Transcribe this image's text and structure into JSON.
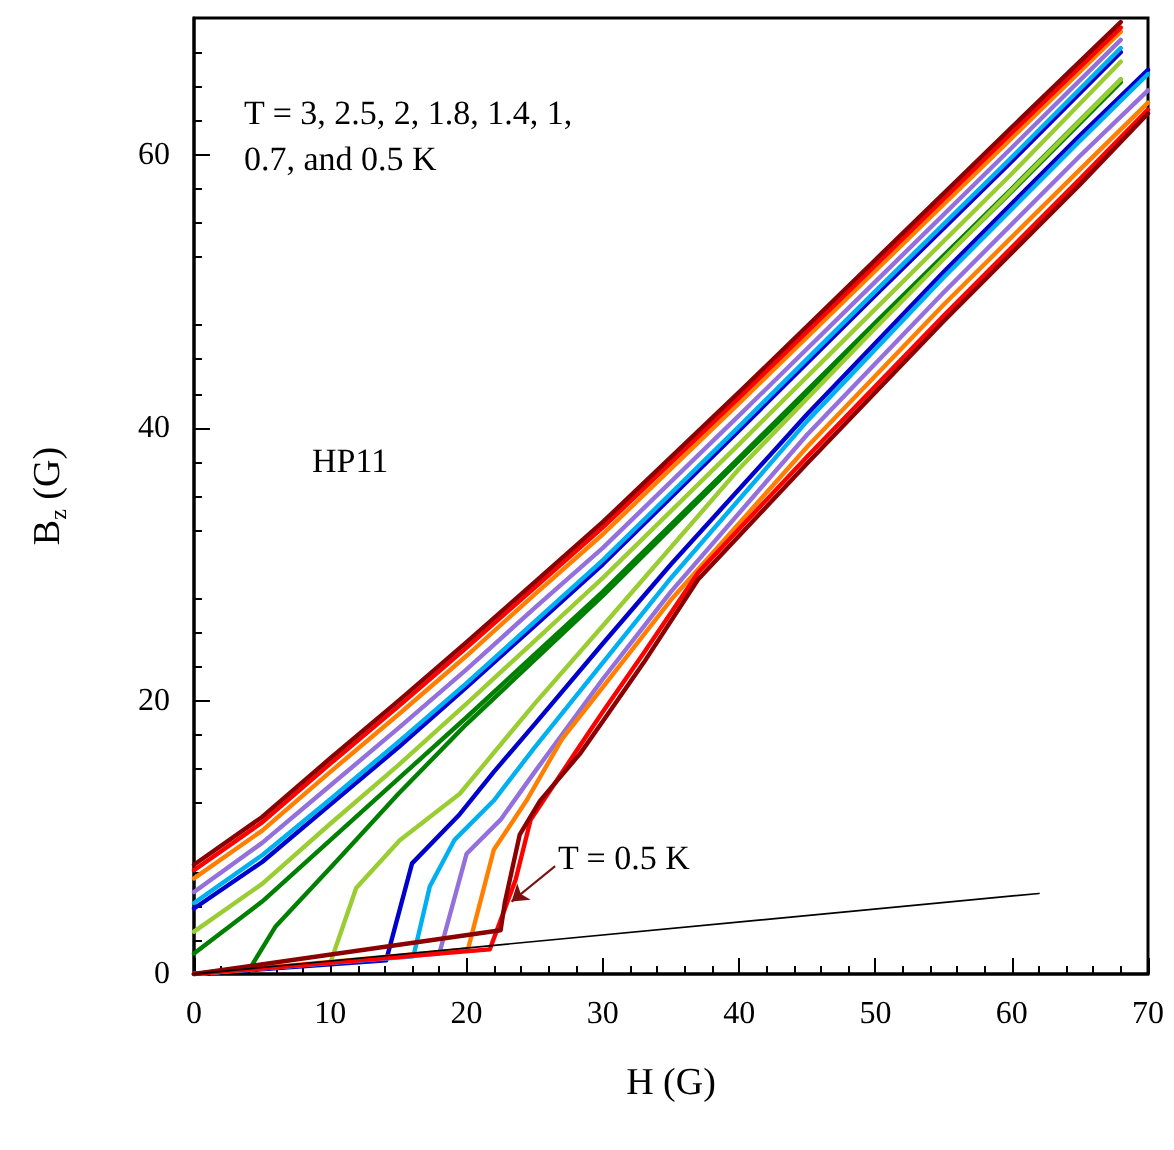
{
  "chart_data": {
    "type": "line",
    "xlabel": "H (G)",
    "ylabel": "B$_{z}$ (G)",
    "xlim": [
      0,
      70
    ],
    "xticks": [
      0,
      10,
      20,
      30,
      40,
      50,
      60,
      70
    ],
    "ylim": [
      0,
      70
    ],
    "yticks": [
      0,
      20,
      40,
      60
    ],
    "grid": false,
    "marker": "none",
    "line_style": "solid",
    "annotations": [
      "T = 3, 2.5, 2, 1.8, 1.4, 1, 0.7, and 0.5 K",
      "HP11",
      {
        "text": "T = 0.5 K",
        "x": 23.3,
        "y": 5.3
      }
    ],
    "series": [
      {
        "color": "#008000",
        "x": [
          0,
          5,
          10,
          15,
          20,
          25,
          30,
          40,
          50,
          60,
          68
        ],
        "values": [
          1.5,
          5.3,
          9.8,
          14.3,
          18.8,
          23.4,
          28,
          37.8,
          47.7,
          57.5,
          65.5
        ]
      },
      {
        "color": "#9acd32",
        "x": [
          0,
          5,
          10,
          15,
          20,
          25,
          30,
          40,
          50,
          60,
          68
        ],
        "values": [
          3.1,
          6.6,
          11,
          15.3,
          19.8,
          24.4,
          29,
          38.8,
          48.7,
          58.6,
          66.8
        ]
      },
      {
        "color": "#0000cd",
        "x": [
          0,
          5,
          10,
          15,
          20,
          25,
          30,
          40,
          50,
          60,
          68
        ],
        "values": [
          4.8,
          8.2,
          12.4,
          16.6,
          21,
          25.5,
          30,
          39.8,
          49.7,
          59.5,
          67.5
        ]
      },
      {
        "color": "#00b0f0",
        "x": [
          0,
          5,
          10,
          15,
          20,
          25,
          30,
          40,
          50,
          60,
          68
        ],
        "values": [
          5.2,
          8.7,
          12.8,
          17,
          21.3,
          25.8,
          30.3,
          40.1,
          50,
          59.8,
          67.8
        ]
      },
      {
        "color": "#9370db",
        "x": [
          0,
          5,
          10,
          15,
          20,
          25,
          30,
          40,
          50,
          60,
          68
        ],
        "values": [
          6,
          9.6,
          13.8,
          18,
          22.3,
          26.8,
          31.2,
          40.9,
          50.7,
          60.5,
          68.4
        ]
      },
      {
        "color": "#ff8000",
        "x": [
          0,
          5,
          10,
          15,
          20,
          25,
          30,
          40,
          50,
          60,
          68
        ],
        "values": [
          7,
          10.5,
          14.8,
          19,
          23.3,
          27.8,
          32.2,
          41.8,
          51.5,
          61.2,
          69
        ]
      },
      {
        "color": "#ff0000",
        "x": [
          0,
          5,
          10,
          15,
          20,
          25,
          30,
          40,
          50,
          60,
          68
        ],
        "values": [
          7.6,
          11.1,
          15.4,
          19.6,
          23.9,
          28.3,
          32.7,
          42.2,
          51.9,
          61.6,
          69.3
        ]
      },
      {
        "color": "#8b0000",
        "x": [
          0,
          5,
          10,
          15,
          20,
          25,
          30,
          40,
          50,
          60,
          68
        ],
        "values": [
          8,
          11.5,
          15.8,
          20,
          24.3,
          28.7,
          33.1,
          42.6,
          52.3,
          62,
          69.7
        ]
      },
      {
        "color": "#008000",
        "x": [
          0,
          4.1,
          6,
          10.3,
          15,
          20,
          30,
          40,
          50,
          60,
          68
        ],
        "values": [
          0,
          0.4,
          3.5,
          8.1,
          13.2,
          18.3,
          27.7,
          37.6,
          47.5,
          57.3,
          65.3
        ]
      },
      {
        "color": "#9acd32",
        "x": [
          0,
          10,
          11.9,
          15.1,
          19.5,
          25,
          30,
          40,
          50,
          60,
          68
        ],
        "values": [
          0,
          0.8,
          6.3,
          9.8,
          13.2,
          19.8,
          25.5,
          37,
          47.3,
          57.4,
          65.5
        ]
      },
      {
        "color": "#0000cd",
        "x": [
          0,
          14.1,
          16,
          19.5,
          22,
          25,
          30,
          35,
          45,
          55,
          65,
          70
        ],
        "values": [
          0,
          1,
          8.1,
          11.7,
          14.8,
          18.3,
          24.2,
          30,
          41,
          51.4,
          61.4,
          66.2
        ]
      },
      {
        "color": "#00b0f0",
        "x": [
          0,
          16.1,
          17.3,
          19.1,
          22,
          25,
          30,
          35,
          45,
          55,
          65,
          70
        ],
        "values": [
          0,
          1.3,
          6.4,
          9.8,
          12.7,
          16.6,
          22.8,
          29,
          40.5,
          51,
          61,
          65.9
        ]
      },
      {
        "color": "#9370db",
        "x": [
          0,
          18,
          20,
          22.5,
          25,
          30,
          35,
          45,
          55,
          65,
          70
        ],
        "values": [
          0,
          1.5,
          8.8,
          11.3,
          14.8,
          21.6,
          28,
          39.5,
          49.9,
          59.9,
          64.7
        ]
      },
      {
        "color": "#ff8000",
        "x": [
          0,
          20.1,
          22,
          24.4,
          27,
          30,
          35,
          45,
          55,
          65,
          70
        ],
        "values": [
          0,
          1.8,
          9.1,
          12.7,
          17.2,
          21,
          27.4,
          38.6,
          49,
          58.9,
          63.8
        ]
      },
      {
        "color": "#ff0000",
        "x": [
          0,
          21.7,
          23.6,
          24.7,
          28.3,
          30,
          33,
          37,
          45,
          55,
          65,
          70
        ],
        "values": [
          0,
          1.8,
          6.9,
          11.3,
          16.7,
          19.2,
          23.5,
          29.4,
          37.9,
          48.2,
          58.2,
          63.3
        ]
      },
      {
        "color": "#8b0000",
        "x": [
          0,
          22.5,
          22.8,
          23.9,
          25.4,
          28.3,
          30,
          33,
          37,
          45,
          55,
          65,
          70
        ],
        "values": [
          0,
          3.2,
          5.2,
          10.2,
          12.7,
          16.1,
          18.5,
          22.8,
          28.9,
          37.4,
          47.8,
          57.8,
          63
        ]
      },
      {
        "color": "#000000",
        "x": [
          0,
          62
        ],
        "values": [
          0,
          5.9
        ]
      }
    ]
  }
}
